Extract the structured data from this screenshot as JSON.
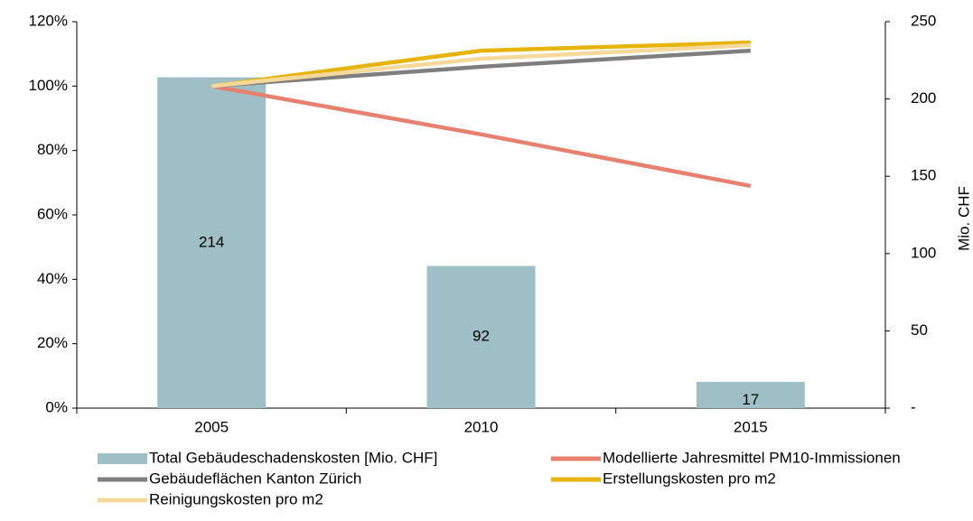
{
  "chart_data": {
    "type": "combo",
    "categories": [
      "2005",
      "2010",
      "2015"
    ],
    "y2label": "Mio. CHF",
    "ylim": [
      0,
      120
    ],
    "yticks": [
      {
        "value": 0,
        "label": "0%"
      },
      {
        "value": 20,
        "label": "20%"
      },
      {
        "value": 40,
        "label": "40%"
      },
      {
        "value": 60,
        "label": "60%"
      },
      {
        "value": 80,
        "label": "80%"
      },
      {
        "value": 100,
        "label": "100%"
      },
      {
        "value": 120,
        "label": "120%"
      }
    ],
    "y2lim": [
      0,
      250
    ],
    "y2ticks": [
      {
        "value": 0,
        "label": "-"
      },
      50,
      100,
      150,
      200,
      250
    ],
    "series": [
      {
        "name": "Total Gebäudeschadenskosten [Mio. CHF]",
        "type": "bar",
        "axis": "y2",
        "color": "#9dbfc5",
        "values": [
          214,
          92,
          17
        ]
      },
      {
        "name": "Modellierte Jahresmittel PM10-Immissionen",
        "type": "line",
        "color": "#e8806f",
        "values": [
          100,
          85,
          69
        ]
      },
      {
        "name": "Gebäudeflächen Kanton Zürich",
        "type": "line",
        "color": "#7f7f7f",
        "values": [
          100,
          106,
          111
        ]
      },
      {
        "name": "Erstellungskosten pro m2",
        "type": "line",
        "color": "#e6b40a",
        "values": [
          100,
          111,
          113.5
        ]
      },
      {
        "name": "Reinigungskosten pro m2",
        "type": "line",
        "color": "#f5d99a",
        "values": [
          100,
          108.5,
          112.7
        ]
      }
    ]
  }
}
